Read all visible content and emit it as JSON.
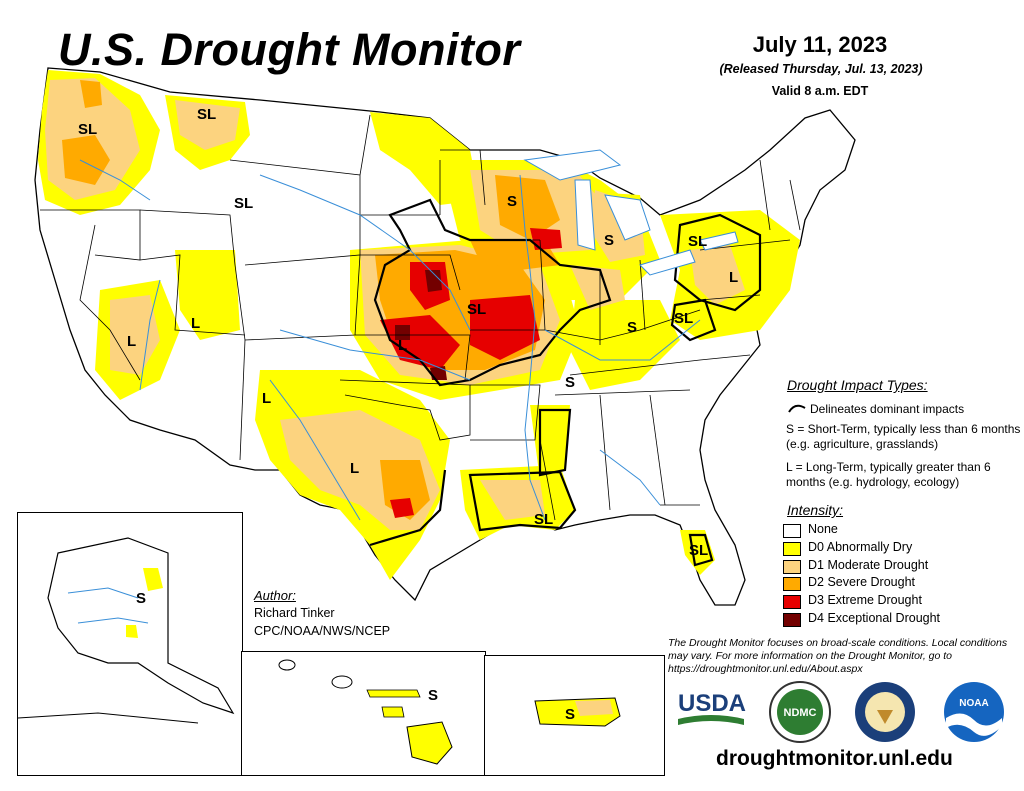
{
  "header": {
    "title": "U.S. Drought Monitor",
    "date": "July 11, 2023",
    "released": "(Released Thursday, Jul. 13, 2023)",
    "valid": "Valid 8 a.m. EDT"
  },
  "legend": {
    "impact_heading": "Drought Impact Types:",
    "delineates": "Delineates dominant impacts",
    "short_term": "S = Short-Term, typically less than 6 months (e.g. agriculture, grasslands)",
    "long_term": "L = Long-Term, typically greater than 6 months (e.g. hydrology, ecology)",
    "intensity_heading": "Intensity:",
    "categories": [
      {
        "label": "None",
        "color": "#ffffff"
      },
      {
        "label": "D0 Abnormally Dry",
        "color": "#ffff00"
      },
      {
        "label": "D1 Moderate Drought",
        "color": "#fcd37f"
      },
      {
        "label": "D2 Severe Drought",
        "color": "#ffaa00"
      },
      {
        "label": "D3 Extreme Drought",
        "color": "#e60000"
      },
      {
        "label": "D4 Exceptional Drought",
        "color": "#730000"
      }
    ]
  },
  "author": {
    "heading": "Author:",
    "name": "Richard Tinker",
    "org": "CPC/NOAA/NWS/NCEP"
  },
  "disclaimer": "The Drought Monitor focuses on broad-scale conditions. Local conditions may vary. For more information on the Drought Monitor, go to https://droughtmonitor.unl.edu/About.aspx",
  "url": "droughtmonitor.unl.edu",
  "map_labels": {
    "sl_wa": "SL",
    "sl_id": "SL",
    "sl_mt": "SL",
    "s_wi": "S",
    "s_mi": "S",
    "sl_pa": "SL",
    "l_ny": "L",
    "sl_ks": "SL",
    "l_ut": "L",
    "l_nv": "L",
    "l_ks": "L",
    "l_az": "L",
    "l_tx": "L",
    "s_ky": "S",
    "sl_oh": "SL",
    "s_ar": "S",
    "sl_la": "SL",
    "sl_fl": "SL",
    "s_ak": "S",
    "s_hi": "S",
    "s_pr": "S"
  },
  "logos": {
    "usda": "USDA",
    "ndmc": "NDMC",
    "noaa": "NOAA"
  }
}
